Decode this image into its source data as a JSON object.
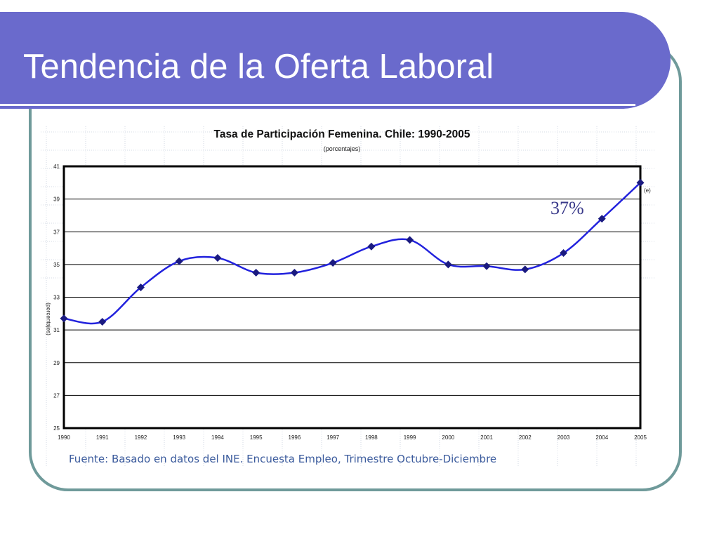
{
  "slide": {
    "title": "Tendencia de la Oferta Laboral"
  },
  "chart_data": {
    "type": "line",
    "title": "Tasa de Participación Femenina. Chile: 1990-2005",
    "subtitle": "(porcentajes)",
    "xlabel": "",
    "ylabel": "(porcentajes)",
    "categories": [
      "1990",
      "1991",
      "1992",
      "1993",
      "1994",
      "1995",
      "1996",
      "1997",
      "1998",
      "1999",
      "2000",
      "2001",
      "2002",
      "2003",
      "2004",
      "2005"
    ],
    "values": [
      31.7,
      31.5,
      33.6,
      35.2,
      35.4,
      34.5,
      34.5,
      35.1,
      36.1,
      36.5,
      35.0,
      34.9,
      34.7,
      35.7,
      37.8,
      40.0
    ],
    "ylim": [
      25,
      41
    ],
    "yticks": [
      25,
      27,
      29,
      31,
      33,
      35,
      37,
      39,
      41
    ],
    "grid": true,
    "line_color": "#2222dd",
    "marker_color": "#1a1a80",
    "annotation": "37%",
    "last_point_note": "(e)",
    "source": "Fuente: Basado en datos del INE. Encuesta Empleo, Trimestre Octubre-Diciembre"
  },
  "colors": {
    "title_bar": "#6a6acc",
    "frame": "#6f9a9a",
    "source_text": "#3a5a9c"
  }
}
